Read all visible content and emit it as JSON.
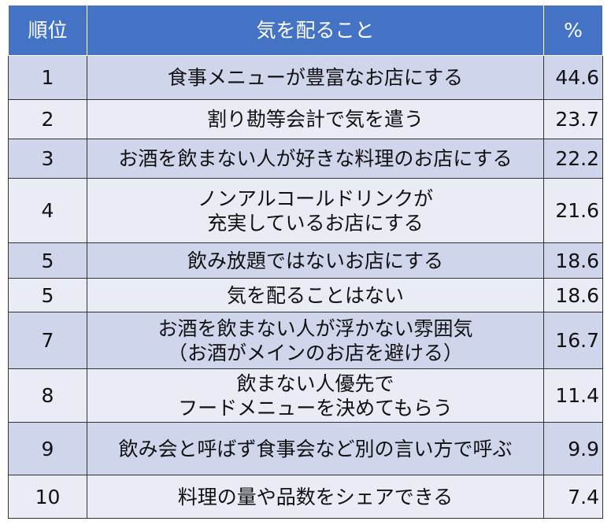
{
  "header": {
    "rank": "順位",
    "item": "気を配ること",
    "pct": "%"
  },
  "table": {
    "rows": [
      {
        "rank": 1,
        "item": [
          "食事メニューが豊富なお店にする"
        ],
        "pct": 44.6
      },
      {
        "rank": 2,
        "item": [
          "割り勘等会計で気を遣う"
        ],
        "pct": 23.7
      },
      {
        "rank": 3,
        "item": [
          "お酒を飲まない人が好きな料理のお店にする"
        ],
        "pct": 22.2
      },
      {
        "rank": 4,
        "item": [
          "ノンアルコールドリンクが",
          "充実しているお店にする"
        ],
        "pct": 21.6
      },
      {
        "rank": 5,
        "item": [
          "飲み放題ではないお店にする"
        ],
        "pct": 18.6
      },
      {
        "rank": 5,
        "item": [
          "気を配ることはない"
        ],
        "pct": 18.6
      },
      {
        "rank": 7,
        "item": [
          "お酒を飲まない人が浮かない雰囲気",
          "（お酒がメインのお店を避ける）"
        ],
        "pct": 16.7
      },
      {
        "rank": 8,
        "item": [
          "飲まない人優先で",
          "フードメニューを決めてもらう"
        ],
        "pct": 11.4
      },
      {
        "rank": 9,
        "item": [
          "飲み会と呼ばず食事会など別の言い方で呼ぶ"
        ],
        "pct": 9.9
      },
      {
        "rank": 10,
        "item": [
          "料理の量や品数をシェアできる"
        ],
        "pct": 7.4
      }
    ]
  }
}
